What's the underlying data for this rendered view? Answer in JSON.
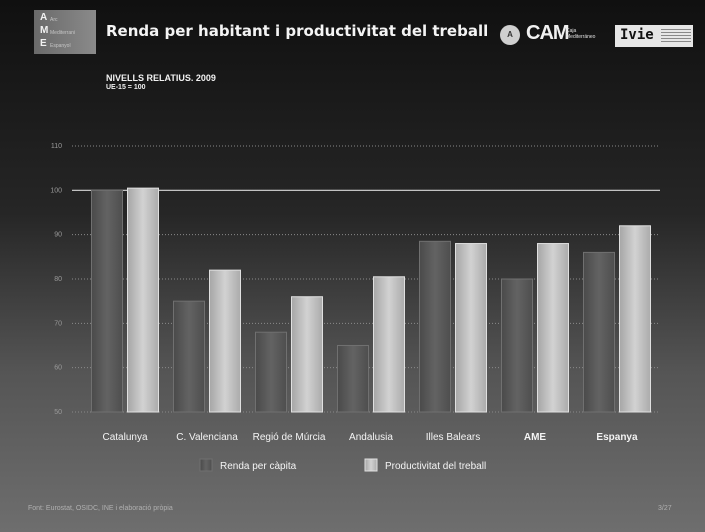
{
  "header": {
    "logo_letters": [
      "A",
      "M",
      "E"
    ],
    "logo_words": [
      "Arc",
      "Mediterrani",
      "Espanyol"
    ],
    "title": "Renda per habitant i productivitat del treball",
    "cam_badge": "A",
    "cam_text": "CAM",
    "cam_sub": "Caja Mediterráneo",
    "ivie_text": "Ivie"
  },
  "subtitle": "NIVELLS RELATIUS. 2009",
  "subtitle2": "UE-15 = 100",
  "chart_data": {
    "type": "bar",
    "title": "",
    "categories": [
      "Catalunya",
      "C. Valenciana",
      "Regió de Múrcia",
      "Andalusia",
      "Illes Balears",
      "AME",
      "Espanya"
    ],
    "bold_categories": [
      "AME",
      "Espanya"
    ],
    "series": [
      {
        "name": "Renda per càpita",
        "values": [
          100,
          75,
          68,
          65,
          88.5,
          80,
          86
        ],
        "color": "#5a5a5a"
      },
      {
        "name": "Productivitat del treball",
        "values": [
          100.5,
          82,
          76,
          80.5,
          88,
          88,
          92
        ],
        "color": "#bdbdbd"
      }
    ],
    "ylim": [
      50,
      110
    ],
    "yticks": [
      "50",
      "60",
      "70",
      "80",
      "90",
      "100",
      "110"
    ],
    "reference_line": 100,
    "grid": true,
    "legend_position": "bottom",
    "xlabel": "",
    "ylabel": ""
  },
  "footer": {
    "source": "Font: Eurostat, OSIDC, INE i elaboració pròpia",
    "page": "3/27"
  }
}
